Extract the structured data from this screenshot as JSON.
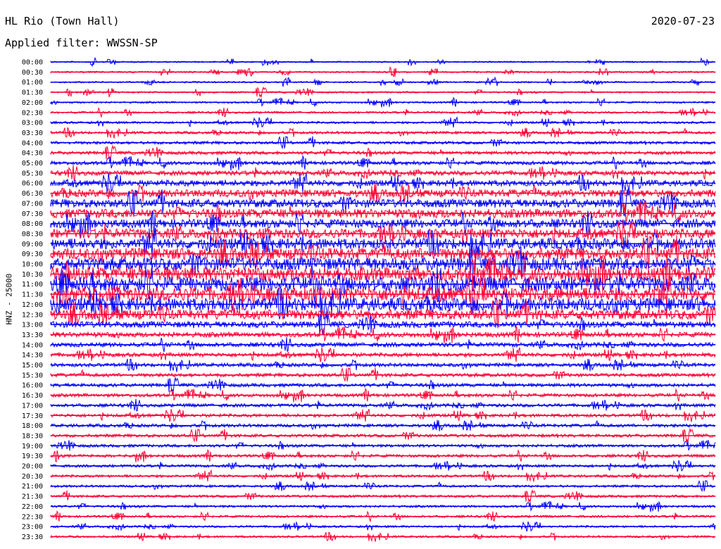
{
  "header": {
    "title": "HL Rio (Town Hall)",
    "date": "2020-07-23",
    "filter": "Applied filter: WWSSN-SP"
  },
  "chart_data": {
    "type": "line",
    "title": "HL Rio (Town Hall)",
    "ylabel": "HNZ - 25000",
    "xlabel": "",
    "colors": {
      "even_rows": "#0000ff",
      "odd_rows": "#ff0033"
    },
    "row_labels": [
      "00:00",
      "00:30",
      "01:00",
      "01:30",
      "02:00",
      "02:30",
      "03:00",
      "03:30",
      "04:00",
      "04:30",
      "05:00",
      "05:30",
      "06:00",
      "06:30",
      "07:00",
      "07:30",
      "08:00",
      "08:30",
      "09:00",
      "09:30",
      "10:00",
      "10:30",
      "11:00",
      "11:30",
      "12:00",
      "12:30",
      "13:00",
      "13:30",
      "14:00",
      "14:30",
      "15:00",
      "15:30",
      "16:00",
      "16:30",
      "17:00",
      "17:30",
      "18:00",
      "18:30",
      "19:00",
      "19:30",
      "20:00",
      "20:30",
      "21:00",
      "21:30",
      "22:00",
      "22:30",
      "23:00",
      "23:30"
    ],
    "relative_noise_level": [
      0.4,
      0.5,
      0.5,
      0.5,
      0.6,
      0.7,
      0.9,
      1.1,
      1.3,
      1.5,
      1.8,
      2.4,
      3.2,
      4.2,
      4.8,
      5.2,
      5.0,
      5.6,
      6.4,
      7.0,
      7.6,
      8.2,
      8.6,
      8.4,
      7.8,
      5.8,
      3.4,
      2.6,
      2.2,
      2.0,
      1.8,
      1.7,
      1.7,
      1.6,
      1.6,
      1.5,
      1.5,
      1.4,
      1.3,
      1.3,
      1.2,
      1.1,
      1.0,
      1.0,
      0.9,
      0.9,
      0.8,
      0.8
    ]
  }
}
